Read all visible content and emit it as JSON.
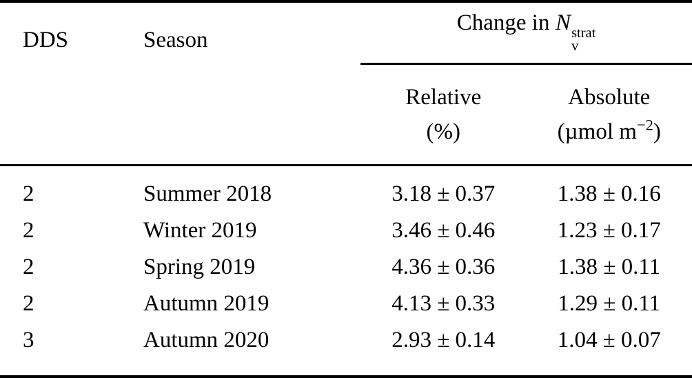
{
  "page": {
    "background_color": "#ffffff",
    "text_color": "#000000",
    "rule_color": "#000000"
  },
  "table": {
    "header": {
      "dds": "DDS",
      "season": "Season",
      "group": {
        "prefix": "Change in",
        "symbol": "N",
        "superscript": "strat",
        "subscript": "v"
      },
      "relative": {
        "label": "Relative",
        "unit": "(%)"
      },
      "absolute": {
        "label": "Absolute",
        "unit_open": "(µmol m",
        "unit_exponent": "−2",
        "unit_close": ")"
      }
    },
    "rows": [
      {
        "dds": "2",
        "season": "Summer 2018",
        "relative": "3.18 ± 0.37",
        "absolute": "1.38 ± 0.16"
      },
      {
        "dds": "2",
        "season": "Winter 2019",
        "relative": "3.46 ± 0.46",
        "absolute": "1.23 ± 0.17"
      },
      {
        "dds": "2",
        "season": "Spring 2019",
        "relative": "4.36 ± 0.36",
        "absolute": "1.38 ± 0.11"
      },
      {
        "dds": "2",
        "season": "Autumn 2019",
        "relative": "4.13 ± 0.33",
        "absolute": "1.29 ± 0.11"
      },
      {
        "dds": "3",
        "season": "Autumn 2020",
        "relative": "2.93 ± 0.14",
        "absolute": "1.04 ± 0.07"
      }
    ]
  },
  "chart_data": {
    "type": "table",
    "title": "Change in N_v^strat per season",
    "columns": [
      "DDS",
      "Season",
      "Relative (%)",
      "Absolute (µmol m−2)"
    ],
    "series": [
      {
        "name": "Relative (%)",
        "values": [
          3.18,
          3.46,
          4.36,
          4.13,
          2.93
        ],
        "errors": [
          0.37,
          0.46,
          0.36,
          0.33,
          0.14
        ]
      },
      {
        "name": "Absolute (µmol m−2)",
        "values": [
          1.38,
          1.23,
          1.38,
          1.29,
          1.04
        ],
        "errors": [
          0.16,
          0.17,
          0.11,
          0.11,
          0.07
        ]
      }
    ],
    "categories": [
      "Summer 2018",
      "Winter 2019",
      "Spring 2019",
      "Autumn 2019",
      "Autumn 2020"
    ],
    "dds_values": [
      2,
      2,
      2,
      2,
      3
    ]
  }
}
